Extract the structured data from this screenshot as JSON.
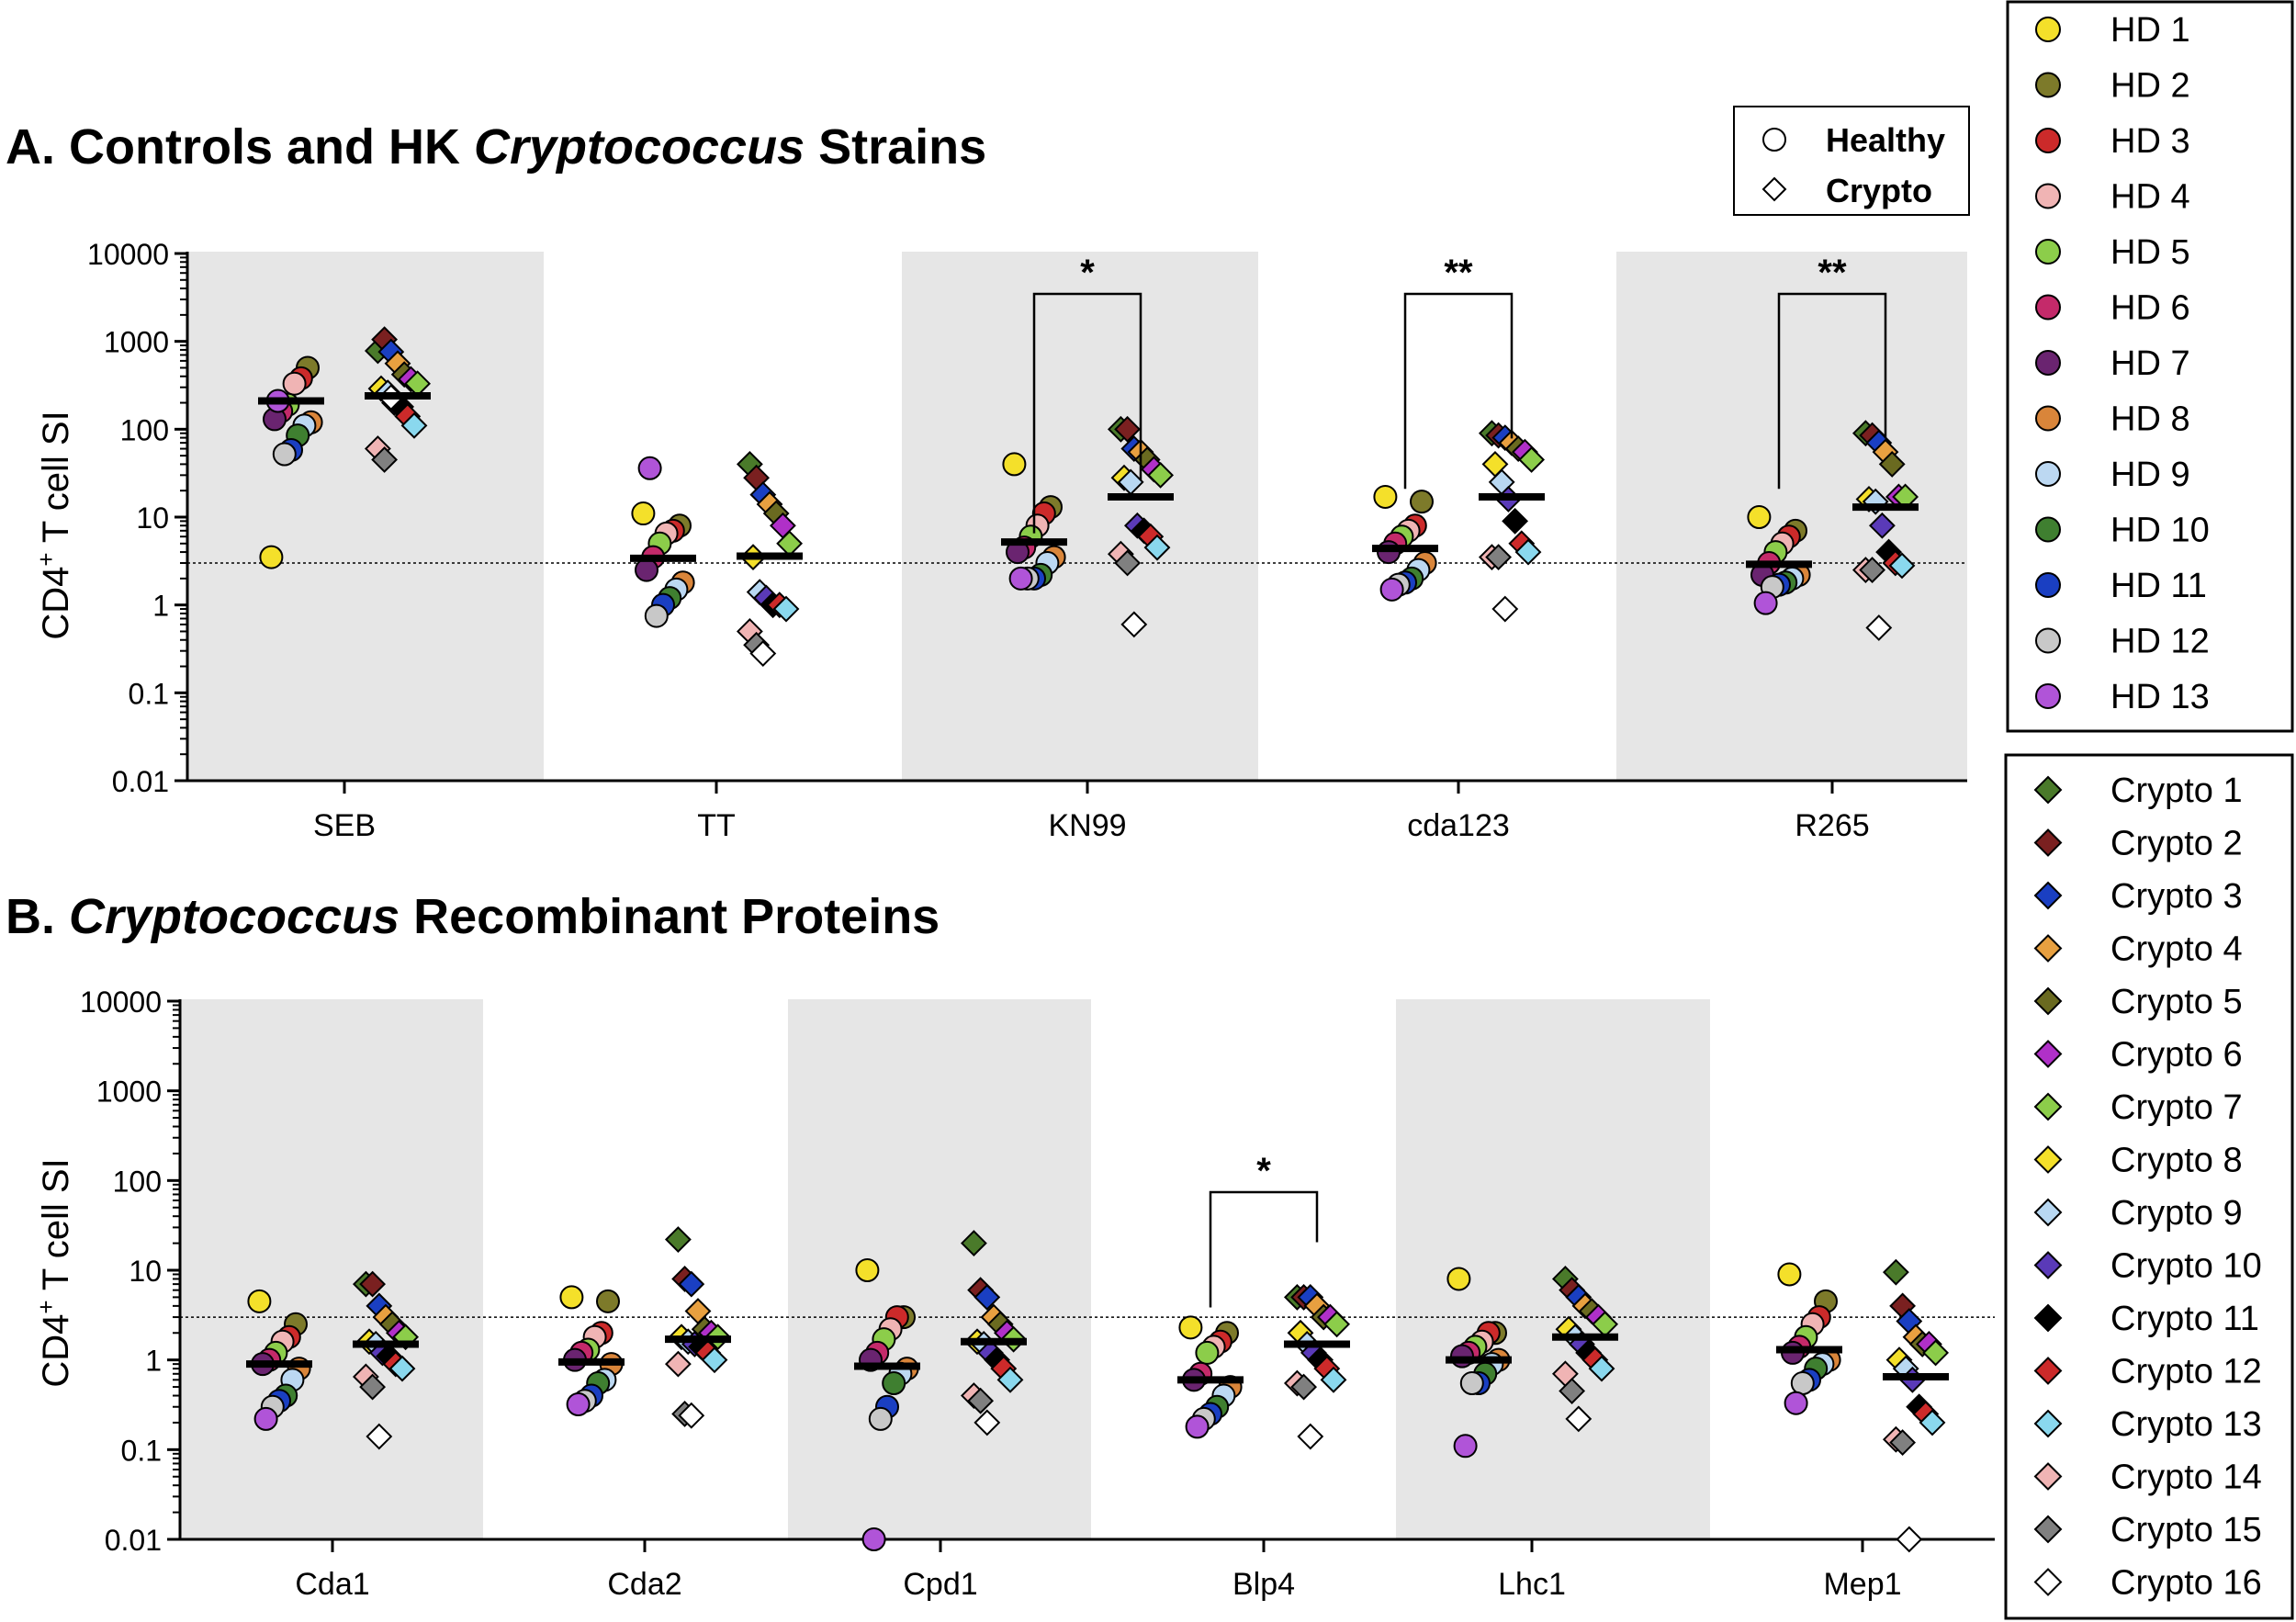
{
  "legend_key": {
    "healthy_label": "Healthy",
    "crypto_label": "Crypto"
  },
  "colors": {
    "panel_shade": "#e6e6e6",
    "mean_bar": "#000000",
    "donors": {
      "HD 1": "#f4e02a",
      "HD 2": "#7d7a2a",
      "HD 3": "#cc2a2a",
      "HD 4": "#f0b4b4",
      "HD 5": "#8ccd4a",
      "HD 6": "#c42a6a",
      "HD 7": "#6a2470",
      "HD 8": "#d9853a",
      "HD 9": "#bcd8f2",
      "HD 10": "#3f7f30",
      "HD 11": "#1a3fc2",
      "HD 12": "#c8c8c8",
      "HD 13": "#b054d8",
      "Crypto 1": "#4a7a2a",
      "Crypto 2": "#7a2020",
      "Crypto 3": "#1a3fc2",
      "Crypto 4": "#e8a040",
      "Crypto 5": "#6a6a20",
      "Crypto 6": "#b030c8",
      "Crypto 7": "#8ccd4a",
      "Crypto 8": "#f4e02a",
      "Crypto 9": "#b8d8f2",
      "Crypto 10": "#5a3ab8",
      "Crypto 11": "#000000",
      "Crypto 12": "#cc2a2a",
      "Crypto 13": "#8ad8ee",
      "Crypto 14": "#f0b4b4",
      "Crypto 15": "#808080",
      "Crypto 16": "#ffffff"
    }
  },
  "legend_hd": [
    "HD 1",
    "HD 2",
    "HD 3",
    "HD 4",
    "HD 5",
    "HD 6",
    "HD 7",
    "HD 8",
    "HD 9",
    "HD 10",
    "HD 11",
    "HD 12",
    "HD 13"
  ],
  "legend_crypto": [
    "Crypto 1",
    "Crypto 2",
    "Crypto 3",
    "Crypto 4",
    "Crypto 5",
    "Crypto 6",
    "Crypto 7",
    "Crypto 8",
    "Crypto 9",
    "Crypto 10",
    "Crypto 11",
    "Crypto 12",
    "Crypto 13",
    "Crypto 14",
    "Crypto 15",
    "Crypto 16"
  ],
  "chart_data": [
    {
      "type": "scatter",
      "title_prefix": "A. Controls and HK ",
      "title_italic": "Cryptococcus",
      "title_suffix": " Strains",
      "ylabel": "CD4+ T cell SI",
      "yscale": "log",
      "ylim": [
        0.01,
        10000
      ],
      "yticks": [
        "0.01",
        "0.1",
        "1",
        "10",
        "100",
        "1000",
        "10000"
      ],
      "threshold": 3,
      "categories": [
        "SEB",
        "TT",
        "KN99",
        "cda123",
        "R265"
      ],
      "shaded": [
        true,
        false,
        true,
        false,
        true
      ],
      "groups": [
        {
          "healthy": [
            3.5,
            500,
            380,
            330,
            190,
            160,
            130,
            120,
            110,
            85,
            58,
            52,
            210
          ],
          "healthy_mean": 210,
          "crypto": [
            780,
            1050,
            760,
            560,
            420,
            370,
            330,
            290,
            260,
            200,
            180,
            140,
            110,
            60,
            45,
            230
          ],
          "crypto_mean": 240
        },
        {
          "healthy": [
            11,
            8,
            7,
            6.5,
            5,
            3.5,
            2.5,
            1.8,
            1.5,
            1.2,
            1.0,
            0.75,
            36
          ],
          "healthy_mean": 3.4,
          "crypto": [
            40,
            28,
            18,
            14,
            11,
            8,
            5,
            3.5,
            1.4,
            1.2,
            1.0,
            1.0,
            0.9,
            0.5,
            0.35,
            0.28
          ],
          "crypto_mean": 3.6
        },
        {
          "healthy": [
            40,
            13,
            11,
            8,
            6,
            4.5,
            4,
            3.5,
            3,
            2.2,
            2,
            2,
            2
          ],
          "healthy_mean": 5.2,
          "crypto": [
            100,
            100,
            60,
            55,
            45,
            35,
            30,
            28,
            25,
            8,
            7,
            6,
            4.5,
            3.8,
            3.0,
            0.6
          ],
          "crypto_mean": 17
        },
        {
          "healthy": [
            17,
            15,
            8,
            7,
            6,
            5,
            4,
            3,
            2.5,
            2,
            1.8,
            1.7,
            1.5
          ],
          "healthy_mean": 4.4,
          "crypto": [
            90,
            85,
            80,
            70,
            60,
            55,
            45,
            40,
            25,
            16,
            9,
            5,
            4,
            3.5,
            3.5,
            0.9
          ],
          "crypto_mean": 17
        },
        {
          "healthy": [
            10,
            7,
            6,
            5,
            4,
            3,
            2.2,
            2.2,
            2,
            1.8,
            1.7,
            1.6,
            1.05
          ],
          "healthy_mean": 2.9,
          "crypto": [
            90,
            85,
            70,
            55,
            40,
            17,
            17,
            16,
            15,
            8,
            4,
            3,
            2.8,
            2.5,
            2.5,
            0.55
          ],
          "crypto_mean": 13
        }
      ],
      "brackets": [
        {
          "from": 2,
          "to": 2,
          "label": "*",
          "left_y": 2.5,
          "right_y": 10
        },
        {
          "from": 3,
          "to": 3,
          "label": "**",
          "left_y": 8,
          "right_y": 30
        },
        {
          "from": 4,
          "to": 4,
          "label": "**",
          "left_y": 8,
          "right_y": 30
        }
      ]
    },
    {
      "type": "scatter",
      "title_prefix": "B. ",
      "title_italic": "Cryptococcus",
      "title_suffix": " Recombinant Proteins",
      "ylabel": "CD4+ T cell SI",
      "yscale": "log",
      "ylim": [
        0.01,
        10000
      ],
      "yticks": [
        "0.01",
        "0.1",
        "1",
        "10",
        "100",
        "1000",
        "10000"
      ],
      "threshold": 3,
      "categories": [
        "Cda1",
        "Cda2",
        "Cpd1",
        "Blp4",
        "Lhc1",
        "Mep1"
      ],
      "shaded": [
        true,
        false,
        true,
        false,
        true,
        false
      ],
      "groups": [
        {
          "healthy": [
            4.5,
            2.5,
            1.8,
            1.6,
            1.2,
            1,
            0.9,
            0.8,
            0.6,
            0.4,
            0.35,
            0.3,
            0.22
          ],
          "healthy_mean": 0.9,
          "crypto": [
            7,
            7,
            4,
            3,
            2.5,
            2,
            1.8,
            1.6,
            1.5,
            1.2,
            1.1,
            0.9,
            0.8,
            0.65,
            0.5,
            0.14
          ],
          "crypto_mean": 1.5
        },
        {
          "healthy": [
            5,
            4.5,
            2,
            1.8,
            1.3,
            1.2,
            1.0,
            0.9,
            0.6,
            0.55,
            0.4,
            0.35,
            0.32
          ],
          "healthy_mean": 0.95,
          "crypto": [
            22,
            8,
            7,
            3.5,
            2.2,
            2,
            1.8,
            1.8,
            1.6,
            1.5,
            1.4,
            1.2,
            1.0,
            0.9,
            0.25,
            0.24
          ],
          "crypto_mean": 1.7
        },
        {
          "healthy": [
            10,
            3,
            3,
            2.2,
            1.7,
            1.2,
            1.0,
            0.8,
            0.7,
            0.55,
            0.3,
            0.22,
            0.01
          ],
          "healthy_mean": 0.85,
          "crypto": [
            20,
            6,
            5,
            3,
            2.5,
            2,
            1.7,
            1.6,
            1.5,
            1.2,
            1.0,
            0.8,
            0.6,
            0.4,
            0.35,
            0.2
          ],
          "crypto_mean": 1.6
        },
        {
          "healthy": [
            2.3,
            2,
            1.6,
            1.4,
            1.2,
            0.7,
            0.6,
            0.5,
            0.4,
            0.3,
            0.25,
            0.22,
            0.18
          ],
          "healthy_mean": 0.6,
          "crypto": [
            5,
            5,
            5,
            4,
            3,
            3,
            2.5,
            2,
            1.5,
            1.2,
            1.0,
            0.8,
            0.6,
            0.55,
            0.5,
            0.14
          ],
          "crypto_mean": 1.5
        },
        {
          "healthy": [
            8,
            2,
            2,
            1.6,
            1.4,
            1.2,
            1.1,
            1,
            0.9,
            0.7,
            0.55,
            0.55,
            0.11
          ],
          "healthy_mean": 1.0,
          "crypto": [
            8,
            6,
            5,
            4,
            3.5,
            3,
            2.5,
            2.2,
            1.8,
            1.5,
            1.2,
            1.0,
            0.8,
            0.7,
            0.45,
            0.22
          ],
          "crypto_mean": 1.8
        },
        {
          "healthy": [
            9,
            4.5,
            3,
            2.5,
            1.8,
            1.4,
            1.2,
            1.0,
            0.9,
            0.8,
            0.6,
            0.55,
            0.33
          ],
          "healthy_mean": 1.3,
          "crypto": [
            9.5,
            4,
            2.7,
            1.8,
            1.5,
            1.5,
            1.2,
            1.0,
            0.8,
            0.6,
            0.3,
            0.25,
            0.2,
            0.13,
            0.12,
            0.01
          ],
          "crypto_mean": 0.65
        }
      ],
      "brackets": [
        {
          "from": 3,
          "to": 3,
          "label": "*",
          "left_y": 1.5,
          "right_y": 8
        }
      ]
    }
  ]
}
